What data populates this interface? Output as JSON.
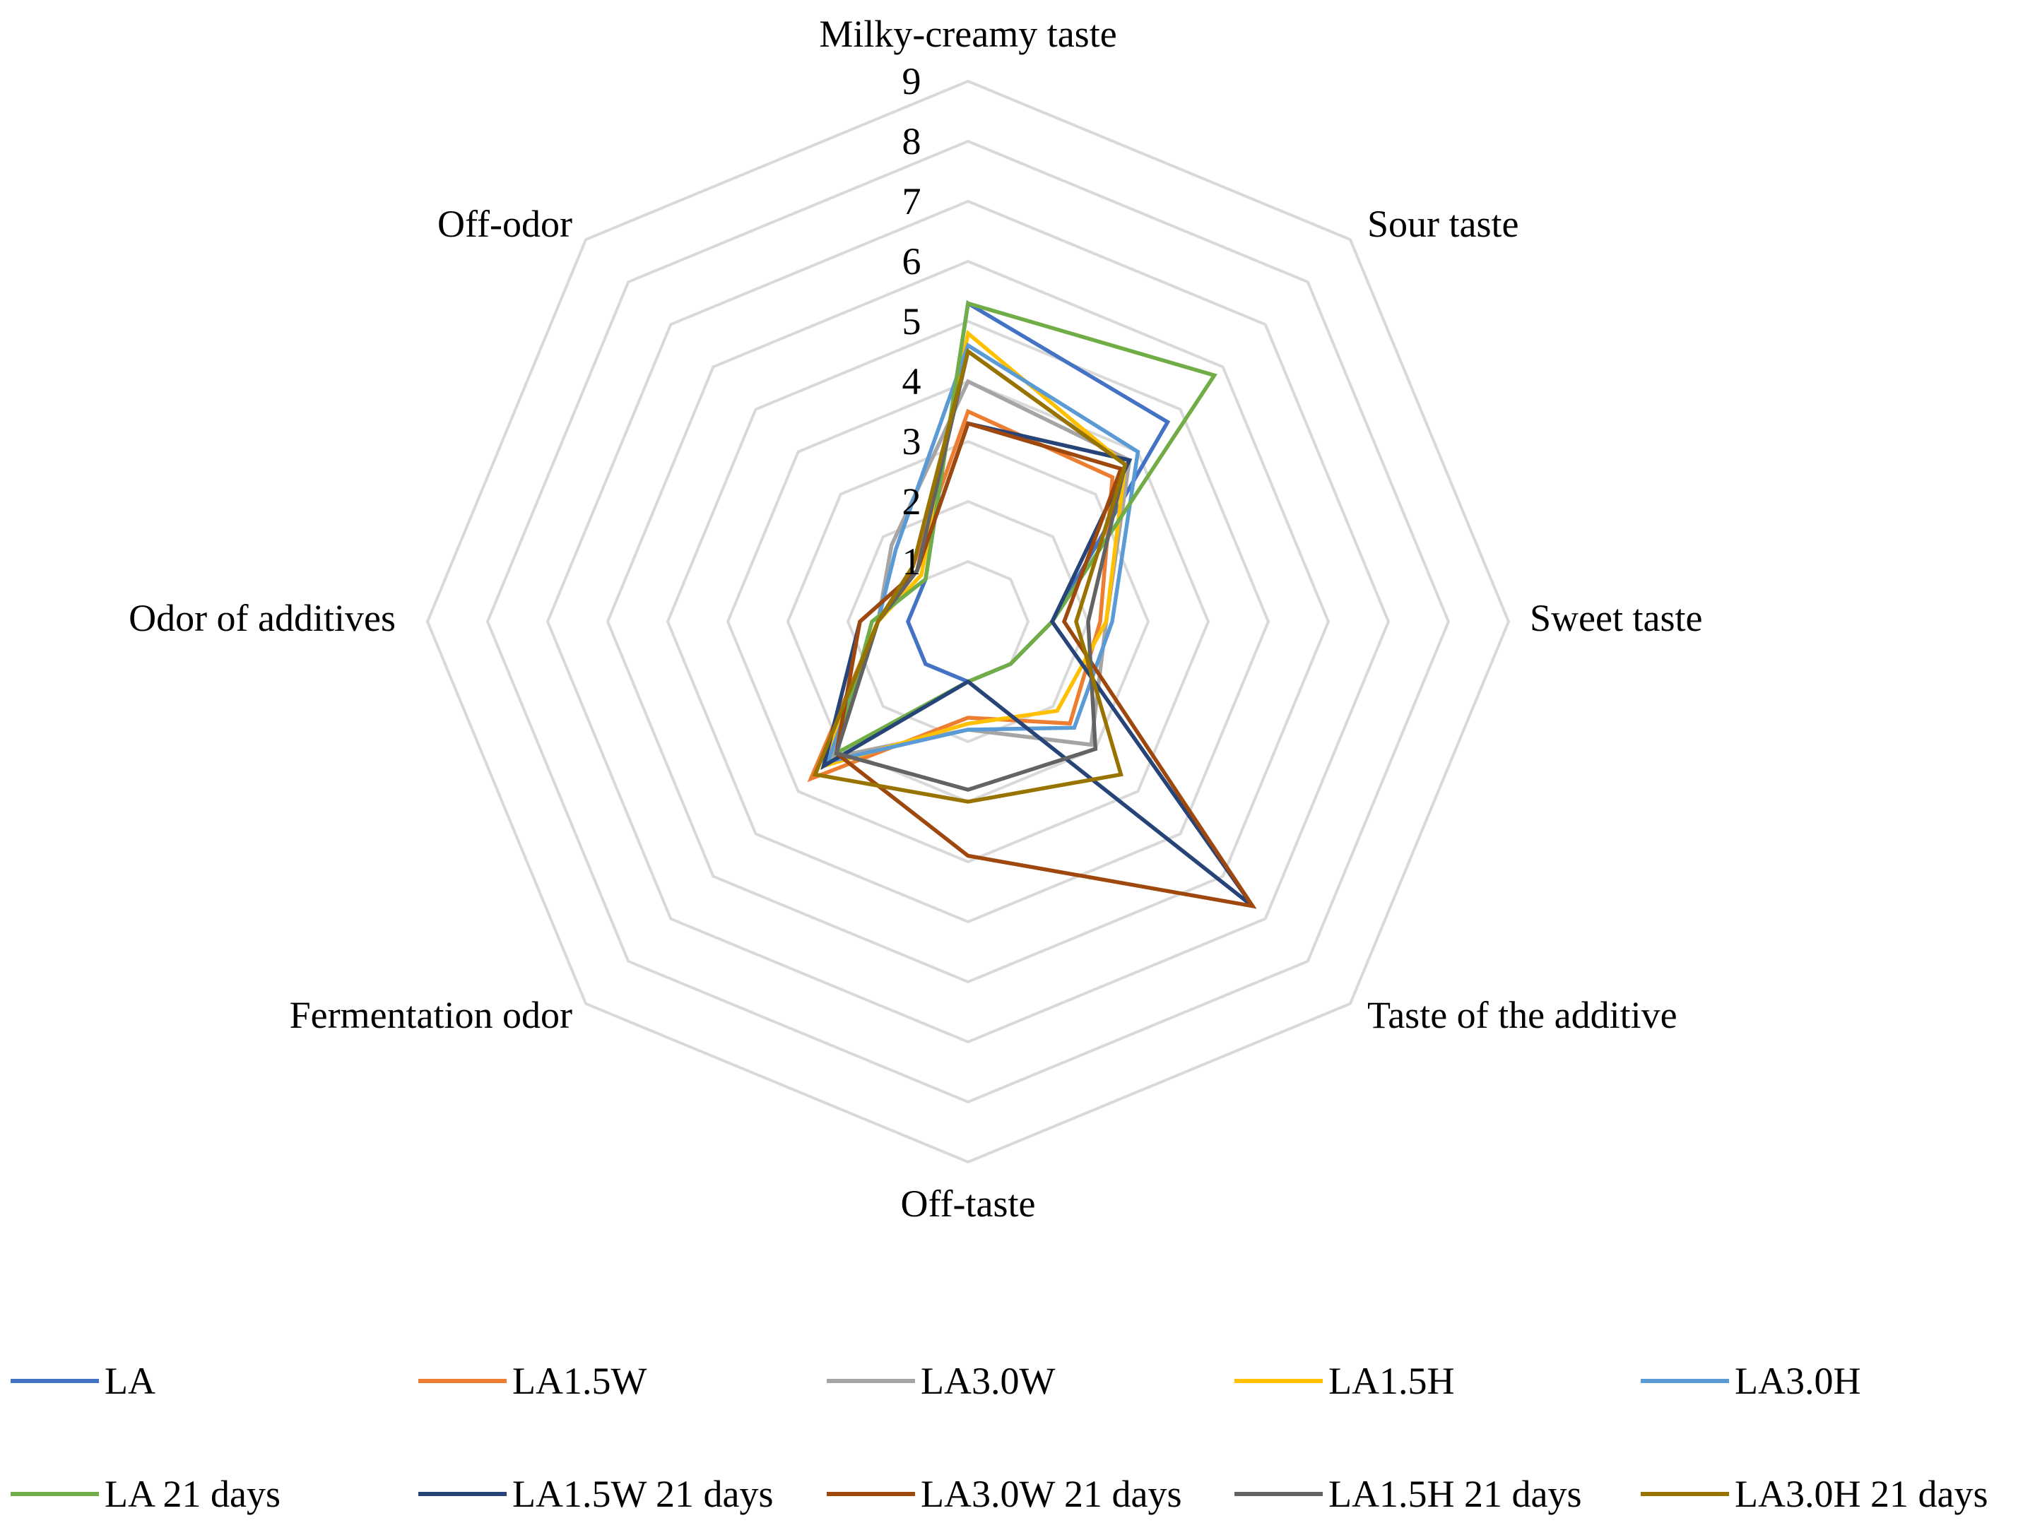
{
  "chart_data": {
    "type": "radar",
    "title": "",
    "axes": [
      "Milky-creamy taste",
      "Sour taste",
      "Sweet taste",
      "Taste of the additive",
      "Off-taste",
      "Fermentation odor",
      "Odor of additives",
      "Off-odor"
    ],
    "r_range": [
      0,
      9
    ],
    "ticks": [
      1,
      2,
      3,
      4,
      5,
      6,
      7,
      8,
      9
    ],
    "tick_labels": [
      "1",
      "2",
      "3",
      "4",
      "5",
      "6",
      "7",
      "8",
      "9"
    ],
    "grid": true,
    "legend_position": "bottom",
    "series": [
      {
        "name": "LA",
        "color": "#4472C4",
        "values": [
          5.3,
          4.7,
          1.4,
          1.0,
          1.0,
          1.0,
          1.0,
          1.0
        ]
      },
      {
        "name": "LA1.5W",
        "color": "#ED7D31",
        "values": [
          3.5,
          3.4,
          2.2,
          2.4,
          1.6,
          3.7,
          1.5,
          1.3
        ]
      },
      {
        "name": "LA3.0W",
        "color": "#A5A5A5",
        "values": [
          4.0,
          3.8,
          2.3,
          2.9,
          1.8,
          3.2,
          1.5,
          1.8
        ]
      },
      {
        "name": "LA1.5H",
        "color": "#FFC000",
        "values": [
          4.8,
          3.7,
          2.3,
          2.1,
          1.7,
          3.4,
          1.5,
          1.1
        ]
      },
      {
        "name": "LA3.0H",
        "color": "#5B9BD5",
        "values": [
          4.6,
          4.0,
          2.4,
          2.5,
          1.8,
          3.3,
          1.5,
          1.7
        ]
      },
      {
        "name": "LA 21 days",
        "color": "#70AD47",
        "values": [
          5.3,
          5.8,
          1.4,
          1.0,
          1.0,
          3.1,
          1.6,
          1.0
        ]
      },
      {
        "name": "LA1.5W 21 days",
        "color": "#264478",
        "values": [
          3.3,
          3.8,
          1.4,
          6.7,
          1.0,
          3.4,
          1.8,
          1.2
        ]
      },
      {
        "name": "LA3.0W 21 days",
        "color": "#9E480E",
        "values": [
          3.3,
          3.6,
          1.6,
          6.7,
          3.9,
          3.1,
          1.8,
          1.2
        ]
      },
      {
        "name": "LA1.5H 21 days",
        "color": "#636363",
        "values": [
          4.5,
          3.7,
          2.0,
          3.0,
          2.8,
          3.1,
          1.5,
          1.2
        ]
      },
      {
        "name": "LA3.0H 21 days",
        "color": "#997300",
        "values": [
          4.5,
          3.7,
          1.8,
          3.6,
          3.0,
          3.6,
          1.5,
          1.3
        ]
      }
    ]
  }
}
